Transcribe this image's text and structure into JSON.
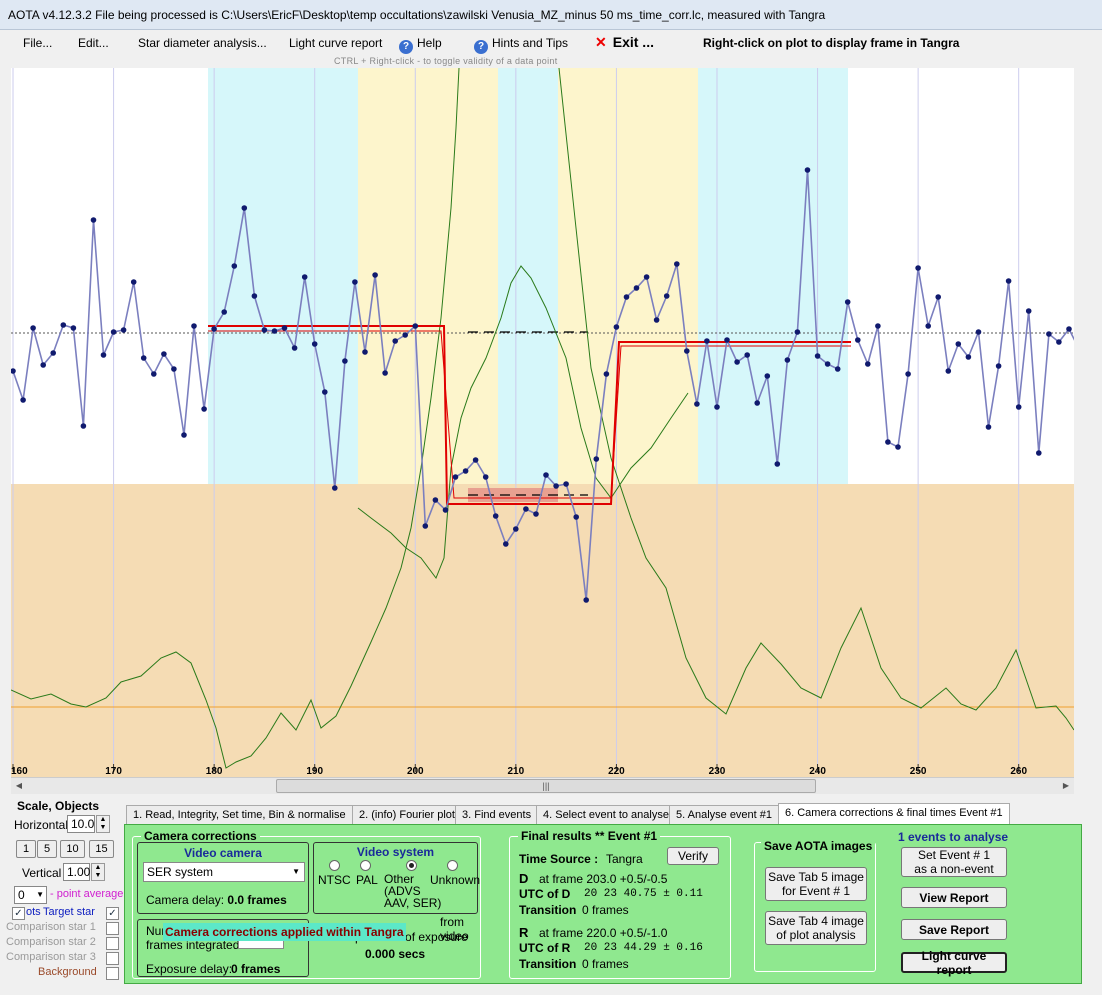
{
  "window": {
    "title": "AOTA v4.12.3.2    File being processed is C:\\Users\\EricF\\Desktop\\temp occultations\\zawilski Venusia_MZ_minus 50 ms_time_corr.lc, measured with Tangra"
  },
  "menu": {
    "file": "File...",
    "edit": "Edit...",
    "star_diameter": "Star diameter analysis...",
    "light_curve_report": "Light curve report",
    "help": "Help",
    "hints": "Hints and Tips",
    "exit": "Exit ...",
    "right_click_hint": "Right-click on plot to display frame in Tangra",
    "ctrl_hint": "CTRL + Right-click  -  to toggle validity of a data point"
  },
  "plot": {
    "x_ticks": [
      "160",
      "170",
      "180",
      "190",
      "200",
      "210",
      "220",
      "230",
      "240",
      "250",
      "260"
    ],
    "colors": {
      "event_band": "#f5dcb4",
      "cyan": "#d6f7fa",
      "yellow": "#fdf5cc",
      "series": "#7b7fbf",
      "points": "#101a6e",
      "fit": "#e00000",
      "green": "#2a7a1a",
      "orange": "#f0a030"
    },
    "x_range": [
      159.8,
      265.5
    ],
    "y_range": [
      0,
      709
    ],
    "blue_frames": [
      160,
      161,
      162,
      163,
      164,
      165,
      166,
      167,
      168,
      169,
      170,
      171,
      172,
      173,
      174,
      175,
      176,
      177,
      178,
      179,
      180,
      181,
      182,
      183,
      184,
      185,
      186,
      187,
      188,
      189,
      190,
      191,
      192,
      193,
      194,
      195,
      196,
      197,
      198,
      199,
      200,
      201,
      202,
      203,
      204,
      205,
      206,
      207,
      208,
      209,
      210,
      211,
      212,
      213,
      214,
      215,
      216,
      217,
      218,
      219,
      220,
      221,
      222,
      223,
      224,
      225,
      226,
      227,
      228,
      229,
      230,
      231,
      232,
      233,
      234,
      235,
      236,
      237,
      238,
      239,
      240,
      241,
      242,
      243,
      244,
      245,
      246,
      247,
      248,
      249,
      250,
      251,
      252,
      253,
      254,
      255,
      256,
      257,
      258,
      259,
      260,
      261,
      262,
      263,
      264,
      265,
      266
    ],
    "blue_values": [
      303,
      332,
      260,
      297,
      285,
      257,
      260,
      358,
      152,
      287,
      264,
      262,
      214,
      290,
      306,
      286,
      301,
      367,
      258,
      341,
      261,
      244,
      198,
      140,
      228,
      262,
      263,
      260,
      280,
      209,
      276,
      324,
      420,
      293,
      214,
      284,
      207,
      305,
      273,
      267,
      258,
      458,
      432,
      442,
      409,
      403,
      392,
      409,
      448,
      476,
      461,
      441,
      446,
      407,
      418,
      416,
      449,
      532,
      391,
      306,
      259,
      229,
      220,
      209,
      252,
      228,
      196,
      283,
      336,
      273,
      339,
      272,
      294,
      287,
      335,
      308,
      396,
      292,
      264,
      102,
      288,
      296,
      301,
      234,
      272,
      296,
      258,
      374,
      379,
      306,
      200,
      258,
      229,
      303,
      276,
      289,
      264,
      359,
      298,
      213,
      339,
      243,
      385,
      266,
      274,
      261,
      281,
      300,
      268,
      300,
      233
    ]
  },
  "tabs": [
    "1. Read, Integrity, Set time, Bin & normalise",
    "2. (info)  Fourier plot",
    "3. Find events",
    "4. Select event to analyse",
    "5. Analyse event #1",
    "6. Camera corrections & final times Event #1"
  ],
  "left": {
    "title": "Scale,  Objects",
    "horizontal_label": "Horizontal",
    "horizontal_value": "10.0",
    "vertical_label": "Vertical",
    "vertical_value": "1.00",
    "steps": [
      "1",
      "5",
      "10",
      "15"
    ],
    "point_avg_value": "0",
    "point_avg_label": "- point average",
    "dots": "ots",
    "target": "Target star",
    "comp1": "Comparison star 1",
    "comp2": "Comparison star 2",
    "comp3": "Comparison star 3",
    "background": "Background"
  },
  "camera": {
    "group_title": "Camera corrections",
    "video_camera": "Video camera",
    "camera_select": "SER system",
    "camera_delay_label": "Camera delay:",
    "camera_delay_value": "0.0 frames",
    "video_system": "Video system",
    "vs_options": [
      "NTSC",
      "PAL",
      "Other\n(ADVS\nAAV, SER)",
      "Unknown"
    ],
    "overlay": "Camera corrections applied within Tangra",
    "num_label": "Num",
    "frames_integrated": "frames integrated",
    "from_video": "from video",
    "stamp_text": "stamp to start of exposure",
    "secs": "0.000 secs",
    "exposure_delay_label": "Exposure delay:",
    "exposure_delay_value": "0 frames"
  },
  "final": {
    "title": "Final results",
    "stars": "**",
    "event": "Event #1",
    "time_source_label": "Time Source :",
    "time_source": "Tangra",
    "verify": "Verify",
    "d_label": "D",
    "d_frame": "at frame 203.0  +0.5/-0.5",
    "utc_d_label": "UTC of D",
    "utc_d": "20 23 40.75  ± 0.11",
    "transition_label": "Transition",
    "d_transition": "0 frames",
    "r_label": "R",
    "r_frame": "at frame 220.0  +0.5/-1.0",
    "utc_r_label": "UTC of R",
    "utc_r": "20 23 44.29  ± 0.16",
    "r_transition": "0 frames"
  },
  "save": {
    "title": "Save AOTA images",
    "tab5": "Save Tab 5 image\nfor Event # 1",
    "tab4": "Save Tab 4 image\nof plot analysis"
  },
  "right": {
    "events": "1  events to analyse",
    "set_event": "Set Event # 1\nas a non-event",
    "view_report": "View Report",
    "save_report": "Save Report",
    "lc_report": "Light curve report"
  }
}
